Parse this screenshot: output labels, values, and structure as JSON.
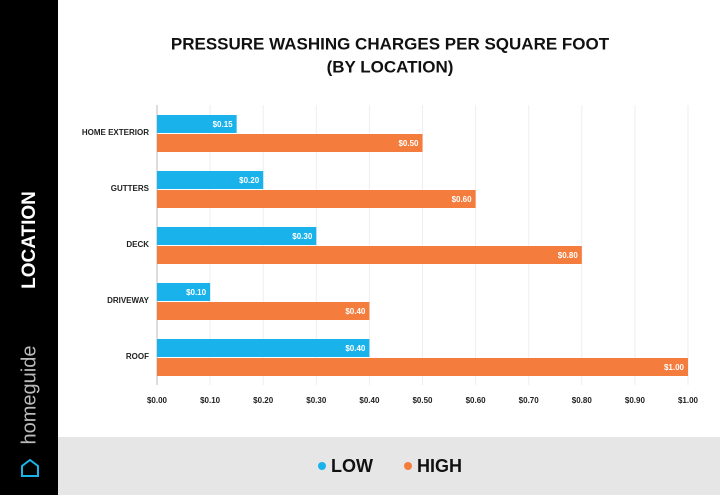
{
  "chart_data": {
    "type": "bar",
    "orientation": "horizontal",
    "title": "PRESSURE WASHING CHARGES PER SQUARE FOOT",
    "subtitle": "(BY LOCATION)",
    "y_label": "LOCATION",
    "brand": "homeguide",
    "categories": [
      "HOME EXTERIOR",
      "GUTTERS",
      "DECK",
      "DRIVEWAY",
      "ROOF"
    ],
    "series": [
      {
        "name": "LOW",
        "color": "#1ab2ea",
        "values": [
          0.15,
          0.2,
          0.3,
          0.1,
          0.4
        ],
        "value_labels": [
          "$0.15",
          "$0.20",
          "$0.30",
          "$0.10",
          "$0.40"
        ]
      },
      {
        "name": "HIGH",
        "color": "#f47c3c",
        "values": [
          0.5,
          0.6,
          0.8,
          0.4,
          1.0
        ],
        "value_labels": [
          "$0.50",
          "$0.60",
          "$0.80",
          "$0.40",
          "$1.00"
        ]
      }
    ],
    "xlim": [
      0,
      1
    ],
    "xticks": [
      {
        "value": 0,
        "label": "$0.00"
      },
      {
        "value": 0.1,
        "label": "$0.10"
      },
      {
        "value": 0.2,
        "label": "$0.20"
      },
      {
        "value": 0.3,
        "label": "$0.30"
      },
      {
        "value": 0.4,
        "label": "$0.40"
      },
      {
        "value": 0.5,
        "label": "$0.50"
      },
      {
        "value": 0.6,
        "label": "$0.60"
      },
      {
        "value": 0.7,
        "label": "$0.70"
      },
      {
        "value": 0.8,
        "label": "$0.80"
      },
      {
        "value": 0.9,
        "label": "$0.90"
      },
      {
        "value": 1,
        "label": "$1.00"
      }
    ],
    "grid": true,
    "legend": "bottom"
  }
}
